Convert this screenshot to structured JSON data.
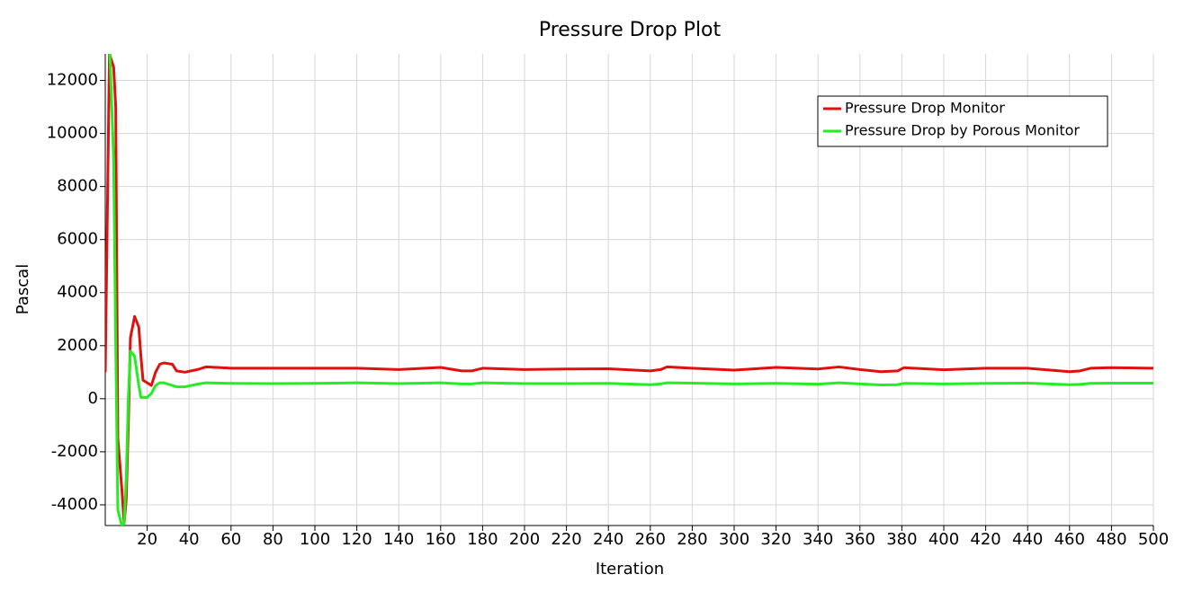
{
  "chart_data": {
    "type": "line",
    "title": "Pressure Drop Plot",
    "x_label": "Iteration",
    "y_label": "Pascal",
    "x": [
      0,
      2,
      4,
      5,
      6,
      8,
      9,
      10,
      11,
      12,
      14,
      16,
      17,
      18,
      20,
      22,
      24,
      26,
      28,
      32,
      34,
      38,
      44,
      48,
      60,
      80,
      100,
      120,
      140,
      160,
      170,
      175,
      180,
      200,
      220,
      240,
      260,
      265,
      268,
      280,
      300,
      320,
      340,
      350,
      360,
      370,
      378,
      381,
      400,
      420,
      440,
      460,
      465,
      470,
      480,
      500
    ],
    "series": [
      {
        "name": "Pressure Drop Monitor",
        "color": "#e01010",
        "values": [
          1000,
          13000,
          12500,
          11000,
          -1500,
          -3500,
          -4700,
          -3800,
          -1000,
          2300,
          3100,
          2700,
          1600,
          700,
          600,
          500,
          1000,
          1300,
          1350,
          1300,
          1050,
          1000,
          1100,
          1200,
          1150,
          1150,
          1150,
          1150,
          1100,
          1180,
          1050,
          1050,
          1150,
          1100,
          1120,
          1130,
          1050,
          1100,
          1200,
          1150,
          1080,
          1180,
          1120,
          1200,
          1100,
          1020,
          1050,
          1170,
          1090,
          1150,
          1150,
          1020,
          1050,
          1150,
          1170,
          1150
        ]
      },
      {
        "name": "Pressure Drop by Porous Monitor",
        "color": "#22ee22",
        "values": [
          13500,
          13500,
          9000,
          2000,
          -4200,
          -4800,
          -4700,
          -3000,
          0,
          1800,
          1600,
          500,
          50,
          50,
          50,
          200,
          500,
          600,
          600,
          500,
          450,
          450,
          550,
          600,
          580,
          570,
          580,
          600,
          570,
          600,
          560,
          560,
          600,
          570,
          570,
          580,
          530,
          560,
          600,
          590,
          560,
          580,
          550,
          600,
          560,
          520,
          530,
          580,
          560,
          580,
          590,
          530,
          540,
          580,
          590,
          590
        ]
      }
    ],
    "xlim": [
      0,
      500
    ],
    "xticks": [
      20,
      40,
      60,
      80,
      100,
      120,
      140,
      160,
      180,
      200,
      220,
      240,
      260,
      280,
      300,
      320,
      340,
      360,
      380,
      400,
      420,
      440,
      460,
      480,
      500
    ],
    "ylim": [
      -4780,
      13000
    ],
    "yticks": [
      -4000,
      -2000,
      0,
      2000,
      4000,
      6000,
      8000,
      10000,
      12000
    ],
    "grid": true,
    "legend": "upper right"
  }
}
